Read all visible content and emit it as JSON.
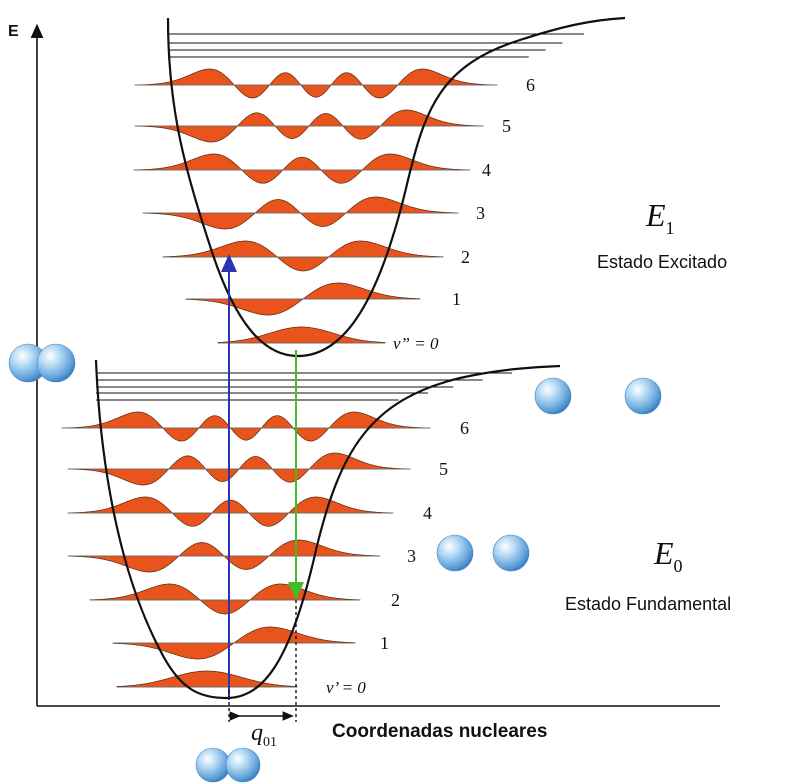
{
  "axes": {
    "y_label": "E",
    "x_label": "Coordenadas nucleares"
  },
  "excited": {
    "symbol": "E",
    "subscript": "1",
    "name": "Estado Excitado",
    "levels": [
      "v” = 0",
      "1",
      "2",
      "3",
      "4",
      "5",
      "6"
    ]
  },
  "ground": {
    "symbol": "E",
    "subscript": "0",
    "name": "Estado Fundamental",
    "levels": [
      "v’ = 0",
      "1",
      "2",
      "3",
      "4",
      "5",
      "6"
    ]
  },
  "displacement": {
    "symbol": "q",
    "subscript": "01"
  },
  "colors": {
    "wavefunction": "#e8541c",
    "absorption_arrow": "#2b35b0",
    "emission_arrow": "#3fbf2a",
    "curve": "#111111",
    "atom": "#8cc4ef"
  }
}
